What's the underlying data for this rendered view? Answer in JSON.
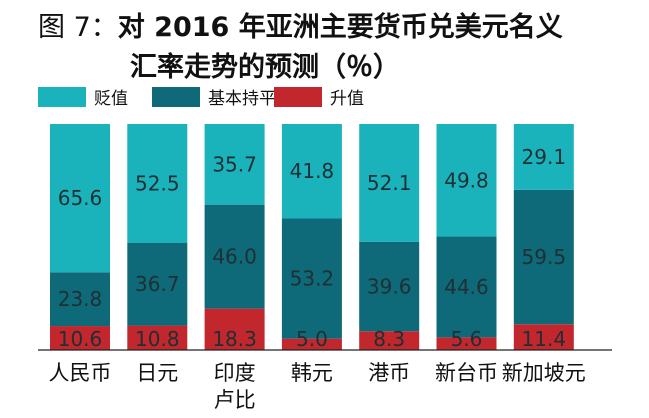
{
  "title": {
    "prefix": "图 7：",
    "line1": "对 2016 年亚洲主要货币兑美元名义",
    "line2": "汇率走势的预测（％）"
  },
  "colors": {
    "depreciate": "#1ab3bc",
    "stable": "#0e6978",
    "appreciate": "#c1272d"
  },
  "chart_data": {
    "type": "bar",
    "stacked": true,
    "categories": [
      "人民币",
      "日元",
      "印度卢比",
      "韩元",
      "港币",
      "新台币",
      "新加坡元"
    ],
    "category_lines": [
      [
        "人民币"
      ],
      [
        "日元"
      ],
      [
        "印度",
        "卢比"
      ],
      [
        "韩元"
      ],
      [
        "港币"
      ],
      [
        "新台币"
      ],
      [
        "新加坡元"
      ]
    ],
    "series": [
      {
        "name": "升值",
        "color": "#c1272d",
        "values": [
          10.6,
          10.8,
          18.3,
          5.0,
          8.3,
          5.6,
          11.4
        ]
      },
      {
        "name": "基本持平",
        "color": "#0e6978",
        "values": [
          23.8,
          36.7,
          46.0,
          53.2,
          39.6,
          44.6,
          59.5
        ]
      },
      {
        "name": "贬值",
        "color": "#1ab3bc",
        "values": [
          65.6,
          52.5,
          35.7,
          41.8,
          52.1,
          49.8,
          29.1
        ]
      }
    ],
    "legend_order": [
      "贬值",
      "基本持平",
      "升值"
    ],
    "legend_position": "top-left",
    "ylim": [
      0,
      100
    ],
    "grid": false
  }
}
